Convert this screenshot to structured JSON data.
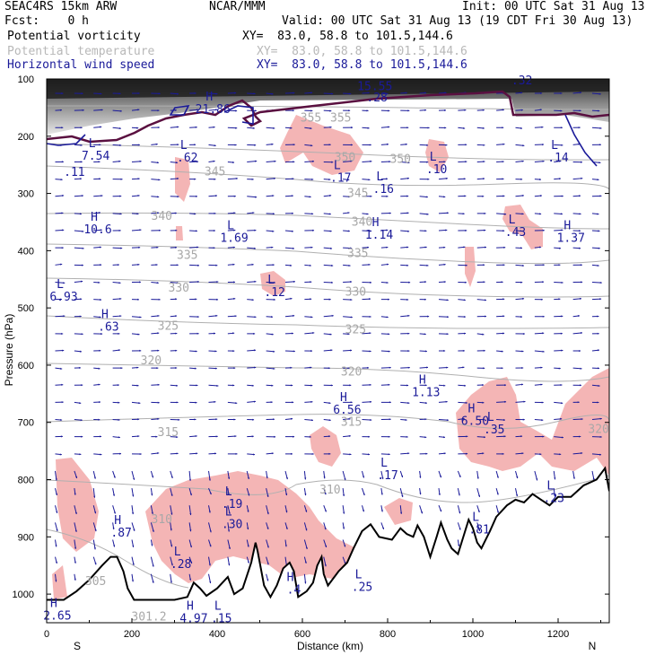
{
  "header": {
    "model": "SEAC4RS 15km ARW",
    "center": "NCAR/MMM",
    "init": "Init: 00 UTC Sat 31 Aug 13",
    "fcst": "Fcst:    0 h",
    "valid": "Valid: 00 UTC Sat 31 Aug 13 (19 CDT Fri 30 Aug 13)",
    "fields": [
      {
        "name": "Potential vorticity",
        "xy": "XY=  83.0, 58.8 to 101.5,144.6",
        "color": "#000000"
      },
      {
        "name": "Potential temperature",
        "xy": "XY=  83.0, 58.8 to 101.5,144.6",
        "color": "#b8b8b8"
      },
      {
        "name": "Horizontal wind speed",
        "xy": "XY=  83.0, 58.8 to 101.5,144.6",
        "color": "#1a1a99"
      }
    ]
  },
  "chart_data": {
    "type": "cross-section",
    "xlabel": "Distance (km)",
    "ylabel": "Pressure (hPa)",
    "xlim": [
      0,
      1320
    ],
    "ylim": [
      1050,
      100
    ],
    "xticks": [
      0,
      200,
      400,
      600,
      800,
      1000,
      1200
    ],
    "yticks": [
      100,
      200,
      300,
      400,
      500,
      600,
      700,
      800,
      900,
      1000
    ],
    "x_end_labels": {
      "left": "S",
      "right": "N"
    },
    "theta_labels": [
      {
        "value": "355",
        "x": 620,
        "p": 168
      },
      {
        "value": "355",
        "x": 690,
        "p": 168
      },
      {
        "value": "350",
        "x": 700,
        "p": 237
      },
      {
        "value": "350",
        "x": 830,
        "p": 240
      },
      {
        "value": "345",
        "x": 395,
        "p": 262
      },
      {
        "value": "345",
        "x": 730,
        "p": 300
      },
      {
        "value": "340",
        "x": 270,
        "p": 340
      },
      {
        "value": "340",
        "x": 740,
        "p": 350
      },
      {
        "value": "335",
        "x": 330,
        "p": 408
      },
      {
        "value": "335",
        "x": 730,
        "p": 405
      },
      {
        "value": "330",
        "x": 310,
        "p": 465
      },
      {
        "value": "330",
        "x": 725,
        "p": 472
      },
      {
        "value": "325",
        "x": 285,
        "p": 532
      },
      {
        "value": "325",
        "x": 725,
        "p": 538
      },
      {
        "value": "320",
        "x": 245,
        "p": 592
      },
      {
        "value": "320",
        "x": 715,
        "p": 612
      },
      {
        "value": "315",
        "x": 285,
        "p": 718
      },
      {
        "value": "315",
        "x": 715,
        "p": 700
      },
      {
        "value": "320",
        "x": 1295,
        "p": 712
      },
      {
        "value": "310",
        "x": 665,
        "p": 818
      },
      {
        "value": "310",
        "x": 270,
        "p": 870
      },
      {
        "value": "305",
        "x": 115,
        "p": 978
      },
      {
        "value": "301.2",
        "x": 240,
        "p": 1040
      }
    ],
    "extrema": [
      {
        "type": "H",
        "value": "21.86",
        "x": 390,
        "p": 150
      },
      {
        "type": "L",
        "value": "7.54",
        "x": 115,
        "p": 232
      },
      {
        "type": "",
        "value": ".11",
        "x": 65,
        "p": 260
      },
      {
        "type": "L",
        "value": ".62",
        "x": 330,
        "p": 235
      },
      {
        "type": "",
        "value": "15.55",
        "x": 770,
        "p": 110
      },
      {
        "type": "",
        "value": ".28",
        "x": 775,
        "p": 130
      },
      {
        "type": "",
        "value": ".32",
        "x": 1115,
        "p": 100
      },
      {
        "type": "L",
        "value": ".17",
        "x": 690,
        "p": 270
      },
      {
        "type": "L",
        "value": ".16",
        "x": 790,
        "p": 290
      },
      {
        "type": "L",
        "value": ".10",
        "x": 915,
        "p": 255
      },
      {
        "type": "L",
        "value": ".14",
        "x": 1200,
        "p": 235
      },
      {
        "type": "H",
        "value": "10.6",
        "x": 120,
        "p": 360
      },
      {
        "type": "L",
        "value": "1.69",
        "x": 440,
        "p": 375
      },
      {
        "type": "H",
        "value": "1.14",
        "x": 780,
        "p": 370
      },
      {
        "type": "L",
        "value": ".43",
        "x": 1100,
        "p": 365
      },
      {
        "type": "H",
        "value": "1.37",
        "x": 1230,
        "p": 375
      },
      {
        "type": "L",
        "value": "6.93",
        "x": 40,
        "p": 478
      },
      {
        "type": "L",
        "value": ".12",
        "x": 535,
        "p": 470
      },
      {
        "type": "H",
        "value": ".63",
        "x": 145,
        "p": 530
      },
      {
        "type": "H",
        "value": "1.13",
        "x": 890,
        "p": 645
      },
      {
        "type": "H",
        "value": "6.56",
        "x": 705,
        "p": 675
      },
      {
        "type": "H",
        "value": "6.50",
        "x": 1005,
        "p": 695
      },
      {
        "type": "L",
        "value": ".35",
        "x": 1050,
        "p": 710
      },
      {
        "type": "L",
        "value": ".17",
        "x": 800,
        "p": 790
      },
      {
        "type": "L",
        "value": ".23",
        "x": 1190,
        "p": 830
      },
      {
        "type": "L",
        "value": ".19",
        "x": 435,
        "p": 840
      },
      {
        "type": "L",
        "value": ".30",
        "x": 435,
        "p": 875
      },
      {
        "type": "H",
        "value": ".87",
        "x": 175,
        "p": 890
      },
      {
        "type": "L",
        "value": ".81",
        "x": 1015,
        "p": 885
      },
      {
        "type": "L",
        "value": ".28",
        "x": 315,
        "p": 945
      },
      {
        "type": "L",
        "value": ".25",
        "x": 740,
        "p": 985
      },
      {
        "type": "H",
        "value": ".4",
        "x": 580,
        "p": 990
      },
      {
        "type": "H",
        "value": "4.97",
        "x": 345,
        "p": 1040
      },
      {
        "type": "H",
        "value": "2.65",
        "x": 25,
        "p": 1035
      },
      {
        "type": "L",
        "value": ".15",
        "x": 410,
        "p": 1040
      }
    ],
    "terrain": [
      [
        0,
        1010
      ],
      [
        40,
        1010
      ],
      [
        70,
        995
      ],
      [
        100,
        975
      ],
      [
        130,
        950
      ],
      [
        150,
        935
      ],
      [
        165,
        935
      ],
      [
        180,
        960
      ],
      [
        190,
        990
      ],
      [
        205,
        1010
      ],
      [
        300,
        1010
      ],
      [
        330,
        1005
      ],
      [
        345,
        980
      ],
      [
        360,
        990
      ],
      [
        375,
        1003
      ],
      [
        400,
        990
      ],
      [
        425,
        970
      ],
      [
        440,
        1000
      ],
      [
        460,
        990
      ],
      [
        480,
        945
      ],
      [
        490,
        910
      ],
      [
        495,
        925
      ],
      [
        510,
        985
      ],
      [
        525,
        1005
      ],
      [
        540,
        985
      ],
      [
        555,
        955
      ],
      [
        570,
        945
      ],
      [
        580,
        960
      ],
      [
        590,
        1005
      ],
      [
        610,
        995
      ],
      [
        625,
        980
      ],
      [
        635,
        950
      ],
      [
        645,
        935
      ],
      [
        650,
        965
      ],
      [
        660,
        985
      ],
      [
        685,
        960
      ],
      [
        705,
        945
      ],
      [
        720,
        920
      ],
      [
        740,
        890
      ],
      [
        760,
        878
      ],
      [
        780,
        900
      ],
      [
        810,
        905
      ],
      [
        830,
        885
      ],
      [
        845,
        895
      ],
      [
        860,
        900
      ],
      [
        870,
        880
      ],
      [
        885,
        900
      ],
      [
        900,
        935
      ],
      [
        915,
        900
      ],
      [
        925,
        875
      ],
      [
        940,
        905
      ],
      [
        950,
        920
      ],
      [
        965,
        930
      ],
      [
        990,
        870
      ],
      [
        1000,
        885
      ],
      [
        1010,
        910
      ],
      [
        1020,
        920
      ],
      [
        1040,
        890
      ],
      [
        1055,
        865
      ],
      [
        1080,
        845
      ],
      [
        1100,
        835
      ],
      [
        1120,
        840
      ],
      [
        1140,
        825
      ],
      [
        1160,
        835
      ],
      [
        1180,
        845
      ],
      [
        1200,
        830
      ],
      [
        1230,
        830
      ],
      [
        1260,
        810
      ],
      [
        1290,
        800
      ],
      [
        1310,
        780
      ],
      [
        1320,
        820
      ]
    ],
    "grid": false
  }
}
